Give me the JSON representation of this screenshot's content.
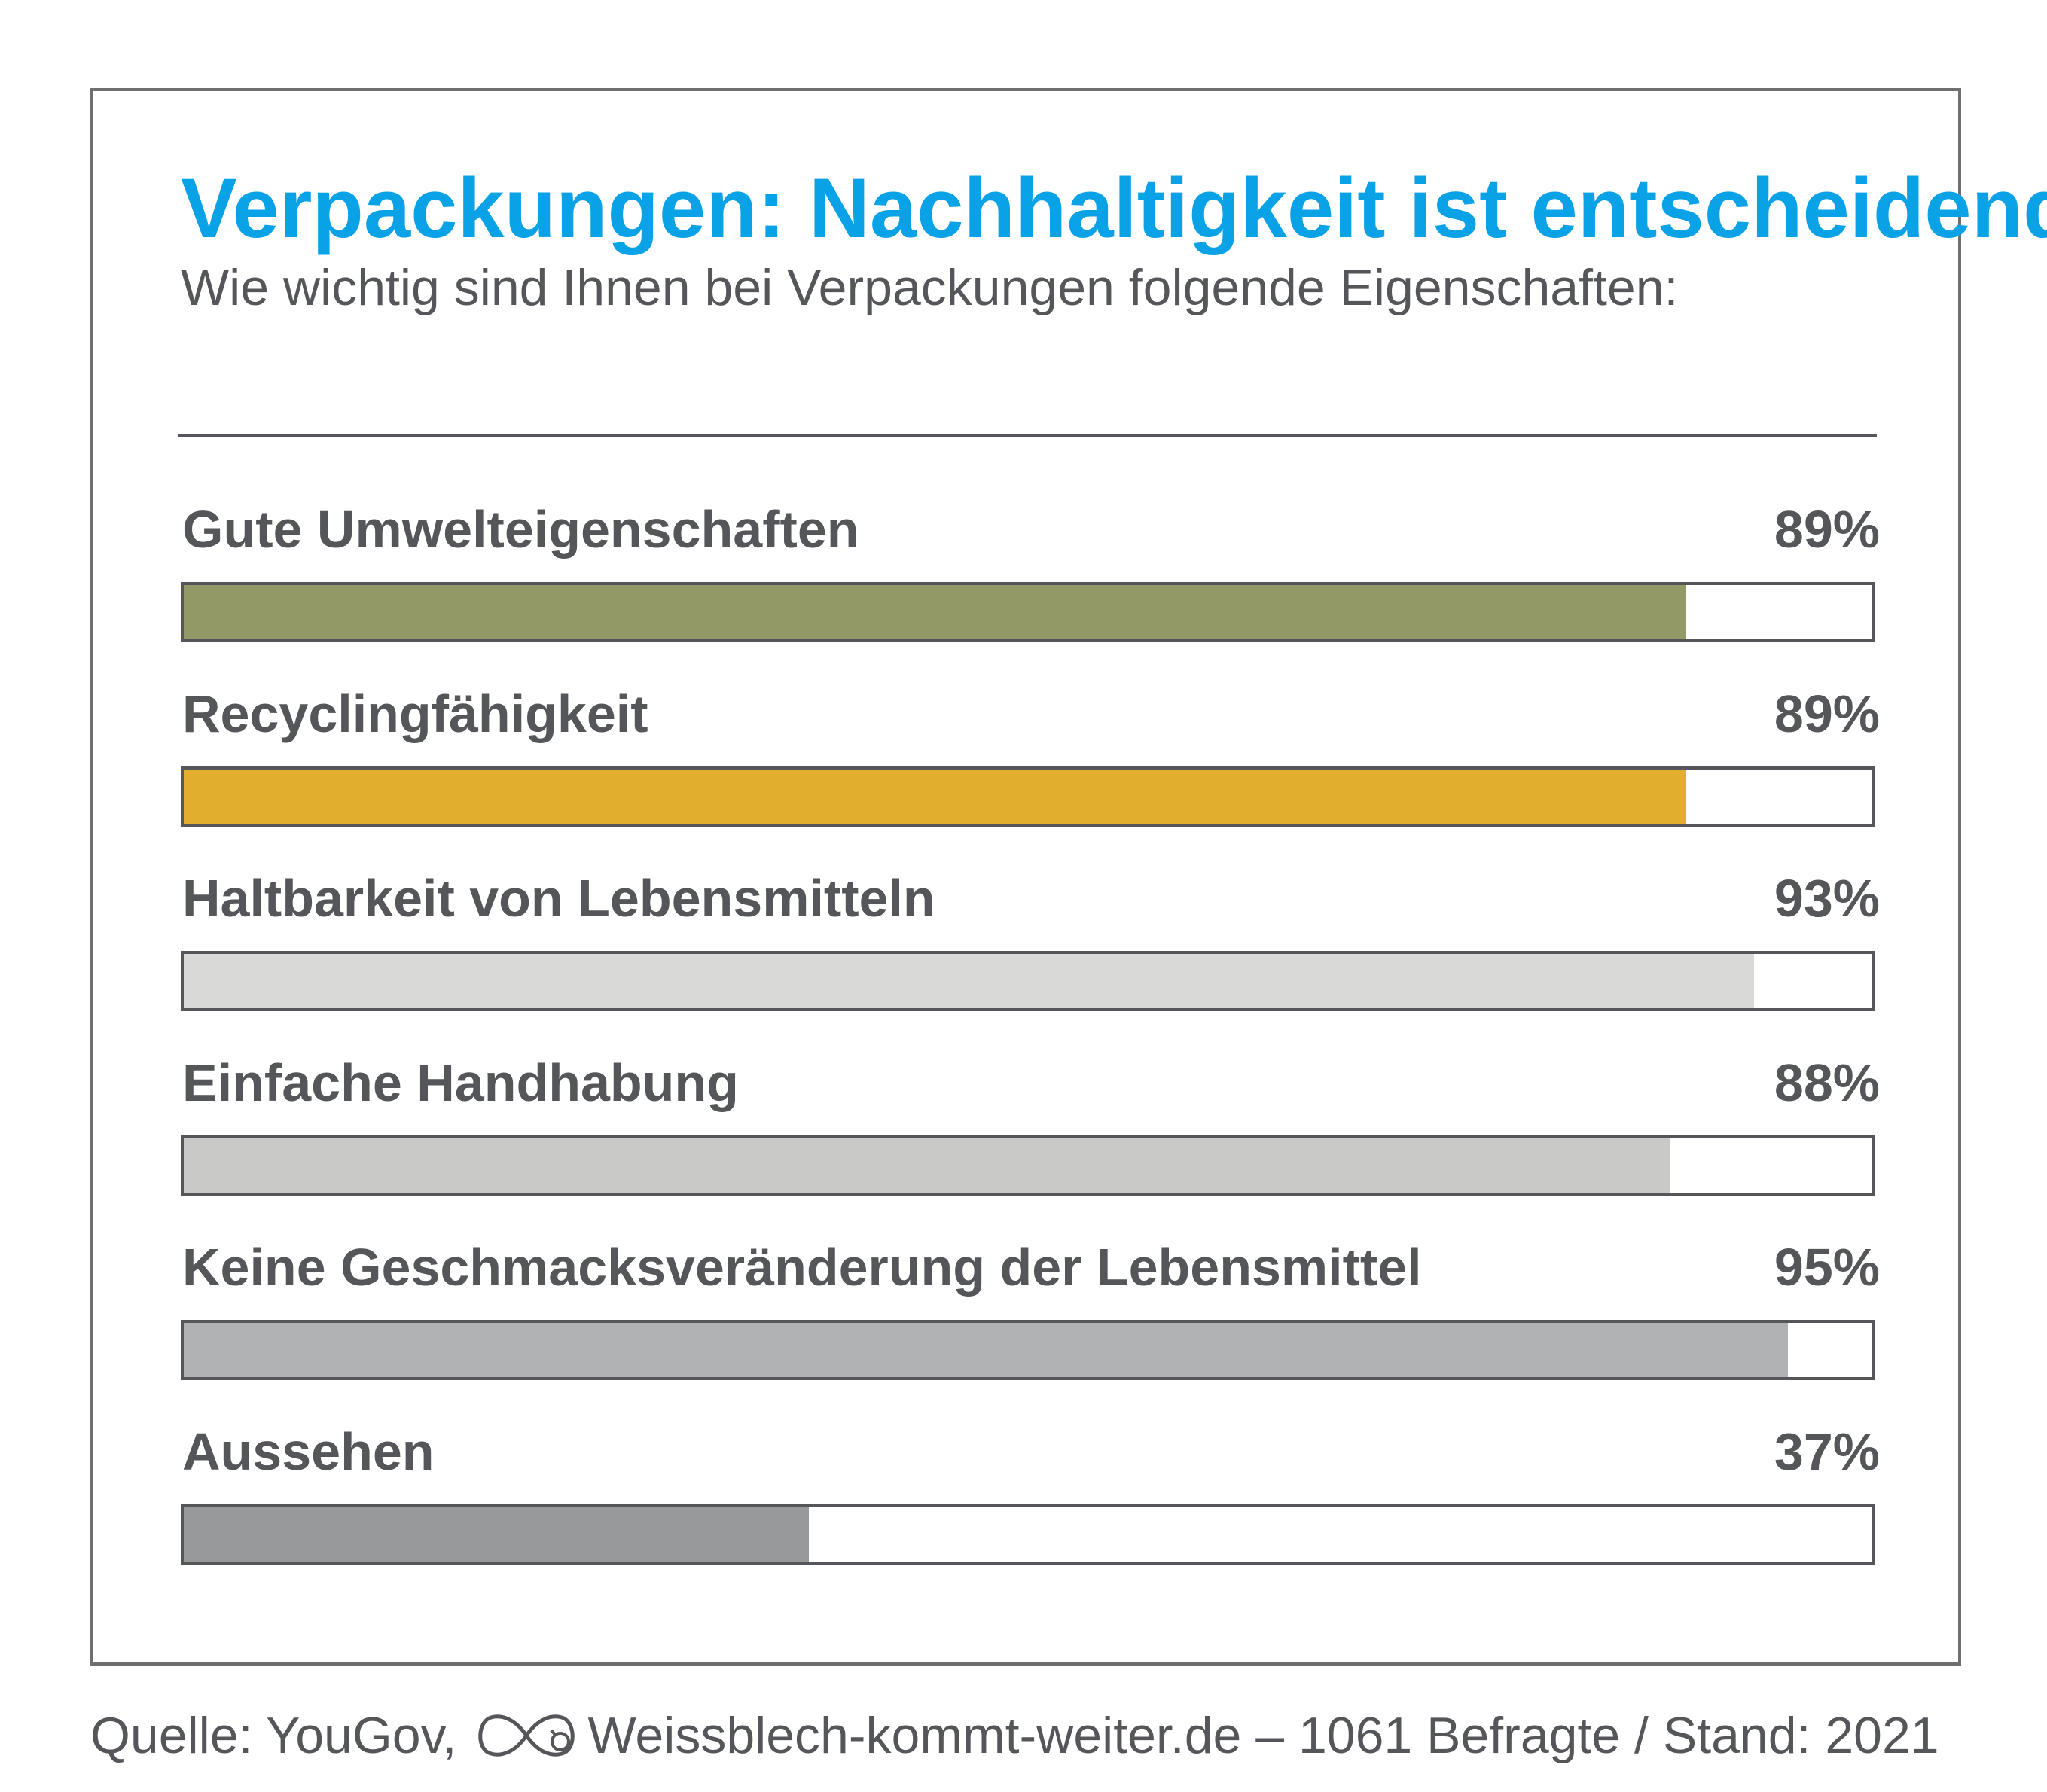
{
  "header": {
    "title": "Verpackungen: Nachhaltigkeit ist entscheidend",
    "subtitle": "Wie wichtig sind Ihnen bei Verpackungen folgende Eigenschaften:"
  },
  "chart_data": {
    "type": "bar",
    "orientation": "horizontal",
    "title": "Verpackungen: Nachhaltigkeit ist entscheidend",
    "subtitle": "Wie wichtig sind Ihnen bei Verpackungen folgende Eigenschaften:",
    "xlim": [
      0,
      100
    ],
    "unit": "%",
    "grid": false,
    "categories": [
      "Gute Umwelteigenschaften",
      "Recyclingfähigkeit",
      "Haltbarkeit von Lebensmitteln",
      "Einfache Handhabung",
      "Keine Geschmacksveränderung der Lebensmittel",
      "Aussehen"
    ],
    "values": [
      89,
      89,
      93,
      88,
      95,
      37
    ],
    "value_labels": [
      "89%",
      "89%",
      "93%",
      "88%",
      "95%",
      "37%"
    ],
    "colors": [
      "#929966",
      "#e1af2d",
      "#d9d9d8",
      "#c9c9c8",
      "#b1b2b3",
      "#98999b"
    ]
  },
  "footer": {
    "source_prefix": "Quelle: YouGov,",
    "logo_icon": "infinity-logo-icon",
    "source_rest": "Weissblech-kommt-weiter.de – 1061 Befragte / Stand: 2021"
  },
  "colors": {
    "title": "#0aa2e6",
    "text": "#55565a",
    "frame": "#6f6f6f"
  }
}
